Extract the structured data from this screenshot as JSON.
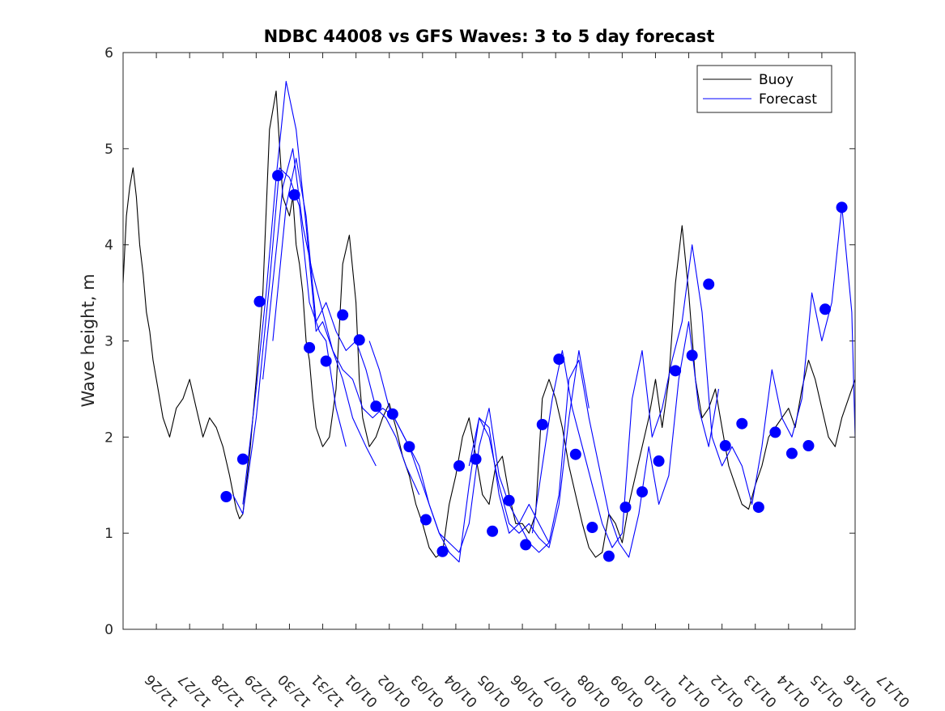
{
  "chart_data": {
    "type": "line",
    "title": "NDBC 44008 vs GFS Waves: 3 to 5 day forecast",
    "xlabel": "",
    "ylabel": "Wave height, m",
    "xlim": [
      0,
      22
    ],
    "ylim": [
      0,
      6
    ],
    "yticks": [
      0,
      1,
      2,
      3,
      4,
      5,
      6
    ],
    "xtick_positions": [
      0,
      1,
      2,
      3,
      4,
      5,
      6,
      7,
      8,
      9,
      10,
      11,
      12,
      13,
      14,
      15,
      16,
      17,
      18,
      19,
      20,
      21,
      22
    ],
    "xtick_labels": [
      "12/26",
      "12/27",
      "12/28",
      "12/29",
      "12/30",
      "12/31",
      "01/01",
      "01/02",
      "01/03",
      "01/04",
      "01/05",
      "01/06",
      "01/07",
      "01/08",
      "01/09",
      "01/10",
      "01/11",
      "01/12",
      "01/13",
      "01/14",
      "01/15",
      "01/16",
      "01/17"
    ],
    "legend": {
      "position": "top-right",
      "entries": [
        "Buoy",
        "Forecast"
      ]
    },
    "series": [
      {
        "name": "Buoy",
        "color": "#000000",
        "x": [
          0,
          0.1,
          0.2,
          0.3,
          0.4,
          0.5,
          0.6,
          0.7,
          0.8,
          0.9,
          1.0,
          1.2,
          1.4,
          1.6,
          1.8,
          2.0,
          2.2,
          2.4,
          2.6,
          2.8,
          3.0,
          3.2,
          3.4,
          3.5,
          3.6,
          3.8,
          4.0,
          4.2,
          4.4,
          4.6,
          4.8,
          5.0,
          5.1,
          5.2,
          5.3,
          5.4,
          5.5,
          5.6,
          5.7,
          5.8,
          6.0,
          6.2,
          6.4,
          6.6,
          6.8,
          7.0,
          7.1,
          7.2,
          7.4,
          7.6,
          7.8,
          8.0,
          8.2,
          8.4,
          8.6,
          8.8,
          9.0,
          9.2,
          9.4,
          9.6,
          9.8,
          10.0,
          10.2,
          10.4,
          10.6,
          10.8,
          11.0,
          11.2,
          11.4,
          11.6,
          11.8,
          12.0,
          12.2,
          12.4,
          12.6,
          12.8,
          13.0,
          13.2,
          13.4,
          13.6,
          13.8,
          14.0,
          14.2,
          14.4,
          14.6,
          14.8,
          15.0,
          15.2,
          15.4,
          15.6,
          15.8,
          16.0,
          16.2,
          16.4,
          16.6,
          16.8,
          17.0,
          17.2,
          17.4,
          17.6,
          17.8,
          18.0,
          18.2,
          18.4,
          18.6,
          18.8,
          19.0,
          19.2,
          19.4,
          19.6,
          19.8,
          20.0,
          20.2,
          20.4,
          20.6,
          20.8,
          21.0,
          21.2,
          21.4,
          21.6,
          21.8,
          22.0
        ],
        "y": [
          3.6,
          4.3,
          4.6,
          4.8,
          4.5,
          4.0,
          3.7,
          3.3,
          3.1,
          2.8,
          2.6,
          2.2,
          2.0,
          2.3,
          2.4,
          2.6,
          2.3,
          2.0,
          2.2,
          2.1,
          1.9,
          1.6,
          1.25,
          1.15,
          1.2,
          1.8,
          2.6,
          3.5,
          5.2,
          5.6,
          4.5,
          4.3,
          4.5,
          4.0,
          3.8,
          3.5,
          3.0,
          2.8,
          2.4,
          2.1,
          1.9,
          2.0,
          2.5,
          3.8,
          4.1,
          3.4,
          2.6,
          2.2,
          1.9,
          2.0,
          2.2,
          2.35,
          2.1,
          1.8,
          1.6,
          1.3,
          1.1,
          0.85,
          0.75,
          0.8,
          1.3,
          1.6,
          2.0,
          2.2,
          1.8,
          1.4,
          1.3,
          1.7,
          1.8,
          1.4,
          1.1,
          1.1,
          1.0,
          1.2,
          2.4,
          2.6,
          2.4,
          2.1,
          1.7,
          1.4,
          1.1,
          0.85,
          0.75,
          0.8,
          1.2,
          1.1,
          0.9,
          1.3,
          1.6,
          1.9,
          2.2,
          2.6,
          2.1,
          2.6,
          3.6,
          4.2,
          3.5,
          2.6,
          2.2,
          2.3,
          2.5,
          2.1,
          1.7,
          1.5,
          1.3,
          1.25,
          1.5,
          1.7,
          2.0,
          2.1,
          2.2,
          2.3,
          2.1,
          2.5,
          2.8,
          2.6,
          2.3,
          2.0,
          1.9,
          2.2,
          2.4,
          2.6
        ]
      },
      {
        "name": "Forecast",
        "color": "#0000ff",
        "runs": [
          {
            "x": [
              3.3,
              3.6,
              4.0,
              4.4,
              4.7,
              5.0,
              5.3,
              5.6,
              5.9,
              6.1,
              6.4,
              6.7
            ],
            "y": [
              1.4,
              1.2,
              2.2,
              3.6,
              4.8,
              4.7,
              4.4,
              3.4,
              3.1,
              3.0,
              2.3,
              1.9
            ]
          },
          {
            "x": [
              3.6,
              4.0,
              4.3,
              4.6,
              4.9,
              5.2,
              5.5,
              5.8,
              6.0,
              6.3,
              6.6,
              6.9,
              7.3,
              7.6
            ],
            "y": [
              1.3,
              2.5,
              3.5,
              4.7,
              5.7,
              5.2,
              4.2,
              3.1,
              3.2,
              2.9,
              2.6,
              2.2,
              1.9,
              1.7
            ]
          },
          {
            "x": [
              4.2,
              4.5,
              4.8,
              5.1,
              5.4,
              5.7,
              6.0,
              6.3,
              6.6,
              6.9,
              7.2,
              7.5,
              7.8,
              8.2
            ],
            "y": [
              2.6,
              3.6,
              4.6,
              5.0,
              4.2,
              3.7,
              3.3,
              2.9,
              2.7,
              2.6,
              2.3,
              2.2,
              2.3,
              2.2
            ]
          },
          {
            "x": [
              4.5,
              4.9,
              5.2,
              5.5,
              5.8,
              6.1,
              6.4,
              6.7,
              7.0,
              7.3,
              7.6,
              7.9,
              8.2,
              8.5,
              8.9
            ],
            "y": [
              3.0,
              4.4,
              4.9,
              4.3,
              3.2,
              3.4,
              3.1,
              2.9,
              3.0,
              2.7,
              2.3,
              2.2,
              2.0,
              1.7,
              1.4
            ]
          },
          {
            "x": [
              7.4,
              7.7,
              8.0,
              8.3,
              8.6,
              8.9,
              9.2,
              9.5,
              9.8,
              10.1,
              10.4,
              10.7,
              11.0,
              11.3,
              11.6,
              11.9,
              12.2,
              12.5,
              12.8
            ],
            "y": [
              3.0,
              2.7,
              2.3,
              2.1,
              1.9,
              1.6,
              1.3,
              1.0,
              0.9,
              0.8,
              1.1,
              1.9,
              2.3,
              1.6,
              1.3,
              1.1,
              0.9,
              0.8,
              0.9
            ]
          },
          {
            "x": [
              8.0,
              8.3,
              8.6,
              8.9,
              9.2,
              9.5,
              9.8,
              10.1,
              10.4,
              10.7,
              11.0,
              11.3,
              11.6,
              11.9,
              12.2,
              12.5,
              12.8,
              13.1,
              13.4,
              13.7,
              14.0
            ],
            "y": [
              2.3,
              2.1,
              1.9,
              1.7,
              1.3,
              1.0,
              0.8,
              0.7,
              1.5,
              2.2,
              2.0,
              1.5,
              1.1,
              1.0,
              1.1,
              0.95,
              0.85,
              1.3,
              2.2,
              2.9,
              2.3
            ]
          },
          {
            "x": [
              10.4,
              10.7,
              11.0,
              11.3,
              11.6,
              11.9,
              12.2,
              12.5,
              12.8,
              13.1,
              13.4,
              13.7,
              14.0,
              14.3,
              14.6,
              14.9,
              15.2,
              15.5,
              15.8,
              16.1,
              16.4,
              16.7,
              17.0,
              17.3,
              17.6,
              17.9
            ],
            "y": [
              1.7,
              2.2,
              2.1,
              1.4,
              1.0,
              1.1,
              1.3,
              1.1,
              0.9,
              1.4,
              2.6,
              2.8,
              2.2,
              1.7,
              1.2,
              0.9,
              0.75,
              1.2,
              1.9,
              1.3,
              1.6,
              2.6,
              3.2,
              2.3,
              1.9,
              2.5
            ]
          },
          {
            "x": [
              12.3,
              12.6,
              12.9,
              13.2,
              13.5,
              13.8,
              14.1,
              14.4,
              14.7,
              15.0,
              15.3,
              15.6,
              15.9,
              16.2,
              16.5,
              16.8,
              17.1,
              17.4,
              17.7,
              18.0,
              18.3,
              18.6,
              18.9,
              19.2,
              19.5,
              19.8,
              20.1,
              20.4,
              20.7,
              21.0,
              21.3,
              21.6,
              21.9,
              22.0
            ],
            "y": [
              1.0,
              1.7,
              2.4,
              2.9,
              2.3,
              1.9,
              1.5,
              1.1,
              0.85,
              1.0,
              2.4,
              2.9,
              2.0,
              2.3,
              2.8,
              3.2,
              4.0,
              3.3,
              2.0,
              1.7,
              1.9,
              1.7,
              1.3,
              1.9,
              2.7,
              2.2,
              2.0,
              2.4,
              3.5,
              3.0,
              3.4,
              4.4,
              3.3,
              2.0
            ]
          }
        ]
      },
      {
        "name": "Forecast markers",
        "color": "#0000ff",
        "marker": "circle",
        "x": [
          3.1,
          3.6,
          4.1,
          4.65,
          5.15,
          5.6,
          6.1,
          6.6,
          7.1,
          7.6,
          8.1,
          8.6,
          9.1,
          9.6,
          10.1,
          10.6,
          11.1,
          11.6,
          12.1,
          12.6,
          13.1,
          13.6,
          14.1,
          14.6,
          15.1,
          15.6,
          16.1,
          16.6,
          17.1,
          17.6,
          18.1,
          18.6,
          19.1,
          19.6,
          20.1,
          20.6,
          21.1,
          21.6
        ],
        "y": [
          1.38,
          1.77,
          3.41,
          4.72,
          4.52,
          2.93,
          2.79,
          3.27,
          3.01,
          2.32,
          2.24,
          1.9,
          1.14,
          0.81,
          1.7,
          1.77,
          1.02,
          1.34,
          0.88,
          2.13,
          2.81,
          1.82,
          1.06,
          0.76,
          1.27,
          1.43,
          1.75,
          2.69,
          2.85,
          3.59,
          1.91,
          2.14,
          1.27,
          2.05,
          1.83,
          1.91,
          3.33,
          4.39
        ]
      }
    ]
  }
}
